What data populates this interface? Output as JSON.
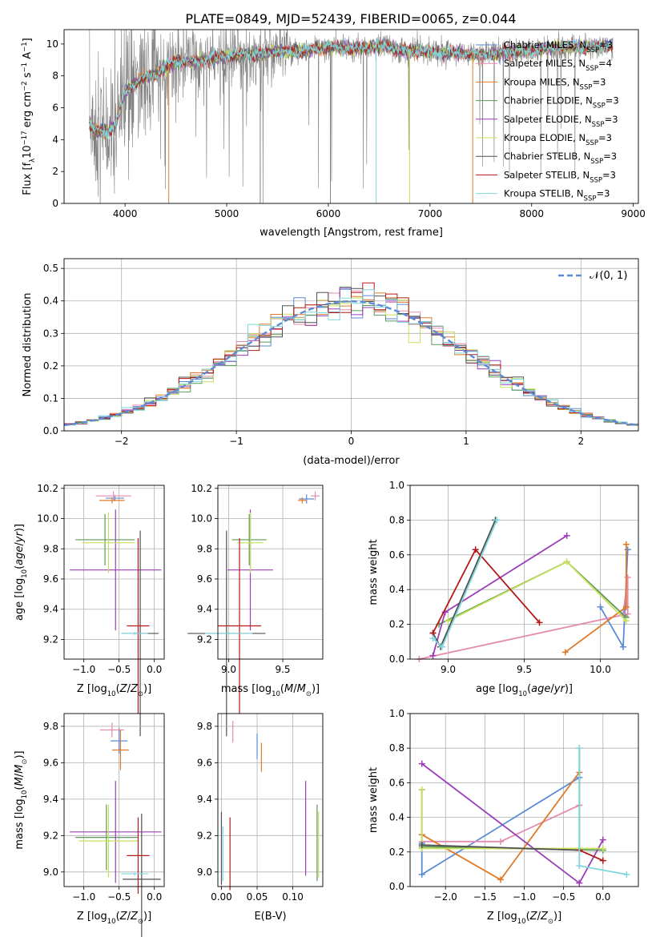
{
  "figure_title": "PLATE=0849, MJD=52439, FIBERID=0065, z=0.044",
  "colors": {
    "chabrier_miles": "#5b8ad6",
    "salpeter_miles": "#e58ab0",
    "kroupa_miles": "#e07a28",
    "chabrier_elodie": "#5a9a58",
    "salpeter_elodie": "#9b3dba",
    "kroupa_elodie": "#c6e05a",
    "chabrier_stelib": "#505050",
    "salpeter_stelib": "#b41818",
    "kroupa_stelib": "#7fd6dc",
    "data": "#808080",
    "normal_curve": "#5b8ad6"
  },
  "chart_data": [
    {
      "id": "spectrum",
      "type": "line",
      "title": "PLATE=0849, MJD=52439, FIBERID=0065, z=0.044",
      "xlabel": "wavelength [Angstrom, rest frame]",
      "ylabel_parts": [
        "Flux [f",
        "λ",
        "10",
        "−17",
        " erg cm",
        "−2",
        " s",
        "−1",
        " A",
        "−1",
        "]"
      ],
      "xlim": [
        3400,
        9050
      ],
      "ylim": [
        0,
        10.9
      ],
      "xticks": [
        4000,
        5000,
        6000,
        7000,
        8000,
        9000
      ],
      "yticks": [
        0,
        2,
        4,
        6,
        8,
        10
      ],
      "grid": false,
      "legend_position": "top-right",
      "legend": [
        {
          "label": "Chabrier MILES, N",
          "sub": "SSP",
          "suffix": "=3",
          "color_key": "chabrier_miles"
        },
        {
          "label": "Salpeter MILES, N",
          "sub": "SSP",
          "suffix": "=4",
          "color_key": "salpeter_miles"
        },
        {
          "label": "Kroupa MILES, N",
          "sub": "SSP",
          "suffix": "=3",
          "color_key": "kroupa_miles"
        },
        {
          "label": "Chabrier ELODIE, N",
          "sub": "SSP",
          "suffix": "=3",
          "color_key": "chabrier_elodie"
        },
        {
          "label": "Salpeter ELODIE, N",
          "sub": "SSP",
          "suffix": "=3",
          "color_key": "salpeter_elodie"
        },
        {
          "label": "Kroupa ELODIE, N",
          "sub": "SSP",
          "suffix": "=3",
          "color_key": "kroupa_elodie"
        },
        {
          "label": "Chabrier STELIB, N",
          "sub": "SSP",
          "suffix": "=3",
          "color_key": "chabrier_stelib"
        },
        {
          "label": "Salpeter STELIB, N",
          "sub": "SSP",
          "suffix": "=3",
          "color_key": "salpeter_stelib"
        },
        {
          "label": "Kroupa STELIB, N",
          "sub": "SSP",
          "suffix": "=3",
          "color_key": "kroupa_stelib"
        }
      ],
      "model_curve": {
        "x": [
          3650,
          3700,
          3800,
          3900,
          3950,
          4000,
          4100,
          4200,
          4300,
          4400,
          4500,
          4700,
          5000,
          5200,
          5500,
          5800,
          6000,
          6300,
          6560,
          6700,
          7000,
          7300,
          7500,
          7800,
          8000,
          8200,
          8500,
          8800
        ],
        "y": [
          5.1,
          4.6,
          4.5,
          4.9,
          6.0,
          7.0,
          7.6,
          7.9,
          8.1,
          8.6,
          8.9,
          8.9,
          9.3,
          9.3,
          9.5,
          9.6,
          9.8,
          9.7,
          9.9,
          9.6,
          9.5,
          9.4,
          9.3,
          9.5,
          9.6,
          9.8,
          9.8,
          9.9
        ]
      },
      "data_range": [
        3650,
        8800
      ],
      "dips": [
        {
          "x": 4430,
          "series": "kroupa_miles"
        },
        {
          "x": 6470,
          "series": "kroupa_stelib"
        },
        {
          "x": 6800,
          "series": "kroupa_elodie"
        },
        {
          "x": 7420,
          "series": "kroupa_miles"
        },
        {
          "x": 5330,
          "series": "data"
        },
        {
          "x": 6020,
          "series": "data"
        }
      ]
    },
    {
      "id": "residuals",
      "type": "bar",
      "xlabel": "(data-model)/error",
      "ylabel": "Normed distribution",
      "xlim": [
        -2.5,
        2.5
      ],
      "ylim": [
        0,
        0.53
      ],
      "xticks": [
        -2,
        -1,
        0,
        1,
        2
      ],
      "yticks": [
        0.0,
        0.1,
        0.2,
        0.3,
        0.4,
        0.5
      ],
      "grid": true,
      "legend_position": "top-right",
      "legend": [
        {
          "label": "𝒩(0, 1)",
          "style": "dashed",
          "color_key": "normal_curve"
        }
      ],
      "bin_width": 0.1
    },
    {
      "id": "age_vs_Z",
      "type": "scatter",
      "xlabel": "Z [log10(Z/Z⊙)]",
      "ylabel": "age  [log10(age/yr)]",
      "xlim": [
        -1.28,
        0.14
      ],
      "ylim": [
        9.07,
        10.22
      ],
      "xticks": [
        -1.0,
        -0.5,
        0.0
      ],
      "yticks": [
        9.2,
        9.4,
        9.6,
        9.8,
        10.0,
        10.2
      ],
      "grid": true,
      "points": [
        {
          "s": "chabrier_miles",
          "x": -0.56,
          "y": 10.135,
          "xe": 0.13,
          "ye": 0.02
        },
        {
          "s": "salpeter_miles",
          "x": -0.58,
          "y": 10.15,
          "xe": 0.25,
          "ye": 0.03
        },
        {
          "s": "kroupa_miles",
          "x": -0.6,
          "y": 10.12,
          "xe": 0.18,
          "ye": 0.02
        },
        {
          "s": "chabrier_elodie",
          "x": -0.7,
          "y": 9.86,
          "xe": 0.42,
          "ye": 0.17
        },
        {
          "s": "salpeter_elodie",
          "x": -0.55,
          "y": 9.66,
          "xe": 0.65,
          "ye": 0.4
        },
        {
          "s": "kroupa_elodie",
          "x": -0.65,
          "y": 9.84,
          "xe": 0.37,
          "ye": 0.2
        },
        {
          "s": "chabrier_stelib",
          "x": -0.2,
          "y": 9.24,
          "xe": 0.26,
          "ye": 0.68
        },
        {
          "s": "salpeter_stelib",
          "x": -0.23,
          "y": 9.29,
          "xe": 0.16,
          "ye": 0.58
        },
        {
          "s": "kroupa_stelib",
          "x": -0.28,
          "y": 9.24,
          "xe": 0.19,
          "ye": 0.01
        }
      ]
    },
    {
      "id": "age_vs_mass",
      "type": "scatter",
      "xlabel": "mass [log10(M/M⊙)]",
      "ylabel": "",
      "xlim": [
        8.9,
        9.87
      ],
      "ylim": [
        9.07,
        10.22
      ],
      "xticks": [
        9.0,
        9.5
      ],
      "yticks": [
        9.2,
        9.4,
        9.6,
        9.8,
        10.0,
        10.2
      ],
      "grid": true,
      "points": [
        {
          "s": "chabrier_miles",
          "x": 9.72,
          "y": 10.13,
          "xe": 0.07,
          "ye": 0.03
        },
        {
          "s": "salpeter_miles",
          "x": 9.8,
          "y": 10.15,
          "xe": 0.04,
          "ye": 0.03
        },
        {
          "s": "kroupa_miles",
          "x": 9.68,
          "y": 10.12,
          "xe": 0.04,
          "ye": 0.02
        },
        {
          "s": "chabrier_elodie",
          "x": 9.19,
          "y": 9.86,
          "xe": 0.16,
          "ye": 0.17
        },
        {
          "s": "salpeter_elodie",
          "x": 9.2,
          "y": 9.66,
          "xe": 0.21,
          "ye": 0.4
        },
        {
          "s": "kroupa_elodie",
          "x": 9.2,
          "y": 9.84,
          "xe": 0.12,
          "ye": 0.2
        },
        {
          "s": "chabrier_stelib",
          "x": 8.98,
          "y": 9.24,
          "xe": 0.36,
          "ye": 0.68
        },
        {
          "s": "salpeter_stelib",
          "x": 9.1,
          "y": 9.29,
          "xe": 0.2,
          "ye": 0.58
        },
        {
          "s": "kroupa_stelib",
          "x": 9.0,
          "y": 9.24,
          "xe": 0.22,
          "ye": 0.01
        }
      ]
    },
    {
      "id": "weight_vs_age",
      "type": "line",
      "xlabel": "age  [log10(age/yr)]",
      "ylabel": "mass weight",
      "xlim": [
        8.75,
        10.25
      ],
      "ylim": [
        0,
        1.0
      ],
      "xticks": [
        9.0,
        9.5,
        10.0
      ],
      "yticks": [
        0.0,
        0.2,
        0.4,
        0.6,
        0.8,
        1.0
      ],
      "grid": true,
      "series": [
        {
          "s": "chabrier_miles",
          "x": [
            10.0,
            10.15,
            10.18
          ],
          "y": [
            0.3,
            0.07,
            0.63
          ]
        },
        {
          "s": "salpeter_miles",
          "x": [
            8.81,
            10.18,
            10.18,
            10.15
          ],
          "y": [
            0.0,
            0.26,
            0.47,
            0.26
          ]
        },
        {
          "s": "kroupa_miles",
          "x": [
            9.77,
            10.17,
            10.17
          ],
          "y": [
            0.04,
            0.3,
            0.66
          ]
        },
        {
          "s": "chabrier_elodie",
          "x": [
            8.94,
            9.78,
            10.17
          ],
          "y": [
            0.2,
            0.56,
            0.24
          ]
        },
        {
          "s": "salpeter_elodie",
          "x": [
            8.9,
            8.98,
            9.78
          ],
          "y": [
            0.02,
            0.27,
            0.71
          ]
        },
        {
          "s": "kroupa_elodie",
          "x": [
            9.0,
            9.78,
            10.17
          ],
          "y": [
            0.22,
            0.56,
            0.22
          ]
        },
        {
          "s": "chabrier_stelib",
          "x": [
            8.9,
            8.95,
            9.31
          ],
          "y": [
            0.15,
            0.07,
            0.8
          ]
        },
        {
          "s": "salpeter_stelib",
          "x": [
            8.9,
            9.18,
            9.6
          ],
          "y": [
            0.15,
            0.63,
            0.21
          ]
        },
        {
          "s": "kroupa_stelib",
          "x": [
            8.9,
            8.96,
            9.32
          ],
          "y": [
            0.12,
            0.07,
            0.8
          ]
        }
      ]
    },
    {
      "id": "mass_vs_Z",
      "type": "scatter",
      "xlabel": "Z [log10(Z/Z⊙)]",
      "ylabel": "mass [log10(M/M⊙)]",
      "xlim": [
        -1.28,
        0.14
      ],
      "ylim": [
        8.92,
        9.87
      ],
      "xticks": [
        -1.0,
        -0.5,
        0.0
      ],
      "yticks": [
        9.0,
        9.2,
        9.4,
        9.6,
        9.8
      ],
      "grid": true,
      "points": [
        {
          "s": "chabrier_miles",
          "x": -0.5,
          "y": 9.72,
          "xe": 0.12,
          "ye": 0.07
        },
        {
          "s": "salpeter_miles",
          "x": -0.6,
          "y": 9.78,
          "xe": 0.17,
          "ye": 0.04
        },
        {
          "s": "kroupa_miles",
          "x": -0.48,
          "y": 9.67,
          "xe": 0.12,
          "ye": 0.11
        },
        {
          "s": "chabrier_elodie",
          "x": -0.68,
          "y": 9.19,
          "xe": 0.44,
          "ye": 0.18
        },
        {
          "s": "salpeter_elodie",
          "x": -0.55,
          "y": 9.22,
          "xe": 0.65,
          "ye": 0.28
        },
        {
          "s": "kroupa_elodie",
          "x": -0.65,
          "y": 9.17,
          "xe": 0.42,
          "ye": 0.2
        },
        {
          "s": "chabrier_stelib",
          "x": -0.18,
          "y": 8.96,
          "xe": 0.27,
          "ye": 0.36
        },
        {
          "s": "salpeter_stelib",
          "x": -0.23,
          "y": 9.09,
          "xe": 0.16,
          "ye": 0.21
        },
        {
          "s": "kroupa_stelib",
          "x": -0.28,
          "y": 8.99,
          "xe": 0.19,
          "ye": 0.01
        }
      ]
    },
    {
      "id": "mass_vs_ebv",
      "type": "scatter",
      "xlabel": "E(B-V)",
      "ylabel": "",
      "xlim": [
        -0.005,
        0.142
      ],
      "ylim": [
        8.92,
        9.87
      ],
      "xticks": [
        0.0,
        0.05,
        0.1
      ],
      "yticks": [
        9.0,
        9.2,
        9.4,
        9.6,
        9.8
      ],
      "grid": true,
      "points": [
        {
          "s": "chabrier_miles",
          "x": 0.05,
          "y": 9.69,
          "xe": 0,
          "ye": 0.07
        },
        {
          "s": "salpeter_miles",
          "x": 0.016,
          "y": 9.77,
          "xe": 0,
          "ye": 0.06
        },
        {
          "s": "kroupa_miles",
          "x": 0.056,
          "y": 9.63,
          "xe": 0,
          "ye": 0.08
        },
        {
          "s": "chabrier_elodie",
          "x": 0.134,
          "y": 9.16,
          "xe": 0,
          "ye": 0.21
        },
        {
          "s": "salpeter_elodie",
          "x": 0.118,
          "y": 9.24,
          "xe": 0,
          "ye": 0.26
        },
        {
          "s": "kroupa_elodie",
          "x": 0.136,
          "y": 9.15,
          "xe": 0,
          "ye": 0.18
        },
        {
          "s": "chabrier_stelib",
          "x": 0.0,
          "y": 9.13,
          "xe": 0,
          "ye": 0.2
        },
        {
          "s": "salpeter_stelib",
          "x": 0.012,
          "y": 9.1,
          "xe": 0,
          "ye": 0.2
        },
        {
          "s": "kroupa_stelib",
          "x": 0.002,
          "y": 9.1,
          "xe": 0,
          "ye": 0.15
        }
      ]
    },
    {
      "id": "weight_vs_Z",
      "type": "line",
      "xlabel": "Z [log10(Z/Z⊙)]",
      "ylabel": "mass weight",
      "xlim": [
        -2.45,
        0.45
      ],
      "ylim": [
        0,
        1.0
      ],
      "xticks": [
        -2.0,
        -1.5,
        -1.0,
        -0.5,
        0.0
      ],
      "yticks": [
        0.0,
        0.2,
        0.4,
        0.6,
        0.8,
        1.0
      ],
      "grid": true,
      "series": [
        {
          "s": "chabrier_miles",
          "x": [
            -2.3,
            -2.3,
            -0.3
          ],
          "y": [
            0.25,
            0.07,
            0.63
          ]
        },
        {
          "s": "salpeter_miles",
          "x": [
            -2.3,
            -1.3,
            -0.3
          ],
          "y": [
            0.26,
            0.26,
            0.47
          ]
        },
        {
          "s": "kroupa_miles",
          "x": [
            -2.3,
            -1.3,
            -0.3
          ],
          "y": [
            0.3,
            0.04,
            0.66
          ]
        },
        {
          "s": "chabrier_elodie",
          "x": [
            -2.3,
            -2.3,
            0.0
          ],
          "y": [
            0.56,
            0.23,
            0.21
          ]
        },
        {
          "s": "salpeter_elodie",
          "x": [
            -2.3,
            -0.3,
            0.0
          ],
          "y": [
            0.71,
            0.02,
            0.27
          ]
        },
        {
          "s": "kroupa_elodie",
          "x": [
            -2.3,
            -2.3,
            0.0
          ],
          "y": [
            0.56,
            0.22,
            0.22
          ]
        },
        {
          "s": "chabrier_stelib",
          "x": [
            -2.3,
            -0.3,
            -0.3
          ],
          "y": [
            0.24,
            0.21,
            0.8
          ]
        },
        {
          "s": "salpeter_stelib",
          "x": [
            -0.3,
            0.0
          ],
          "y": [
            0.21,
            0.15
          ]
        },
        {
          "s": "kroupa_stelib",
          "x": [
            -0.3,
            -0.3,
            0.3
          ],
          "y": [
            0.8,
            0.12,
            0.07
          ]
        }
      ]
    }
  ]
}
